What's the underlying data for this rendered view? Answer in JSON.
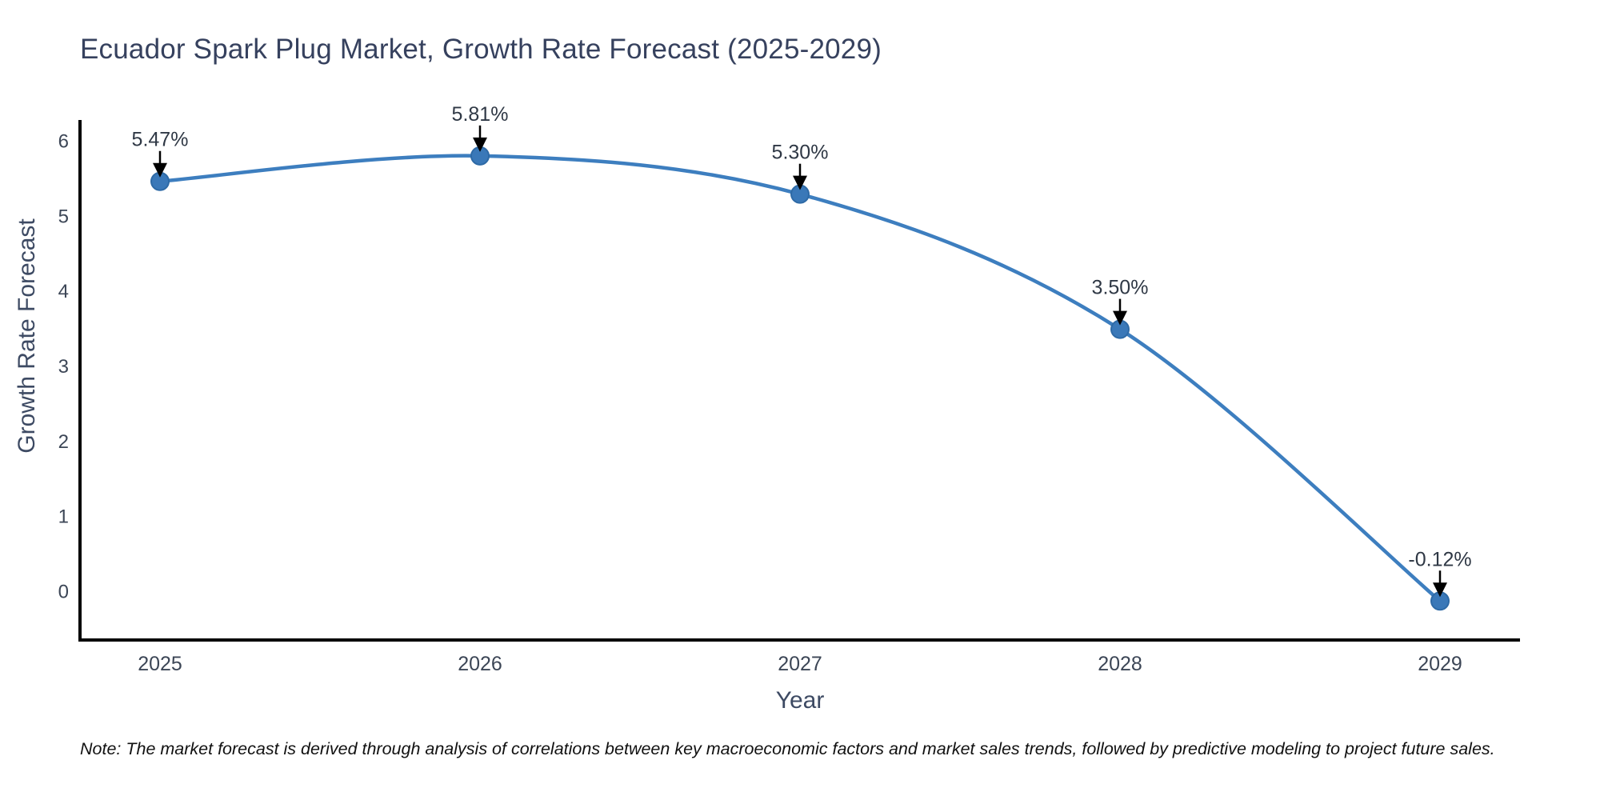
{
  "chart_data": {
    "type": "line",
    "title": "Ecuador Spark Plug Market, Growth Rate Forecast (2025-2029)",
    "xlabel": "Year",
    "ylabel": "Growth Rate Forecast",
    "categories": [
      "2025",
      "2026",
      "2027",
      "2028",
      "2029"
    ],
    "values": [
      5.47,
      5.81,
      5.3,
      3.5,
      -0.12
    ],
    "point_labels": [
      "5.47%",
      "5.81%",
      "5.30%",
      "3.50%",
      "-0.12%"
    ],
    "yticks": [
      "0",
      "1",
      "2",
      "3",
      "4",
      "5",
      "6"
    ],
    "ylim": [
      -0.6,
      6.3
    ],
    "grid": false,
    "legend": "none",
    "note": "Note: The market forecast is derived through analysis of correlations between key macroeconomic factors and market sales trends, followed by predictive modeling to project future sales.",
    "colors": {
      "line": "#3d7ebf",
      "marker_fill": "#3a78b8",
      "marker_edge": "#2e6aa6",
      "arrow": "#000000",
      "spine": "#000000",
      "title_text": "#36415e",
      "axis_title_text": "#3d4a63",
      "tick_text": "#3c4656",
      "annotation_text": "#2f3845",
      "note_text": "#111111",
      "background": "#ffffff"
    }
  }
}
